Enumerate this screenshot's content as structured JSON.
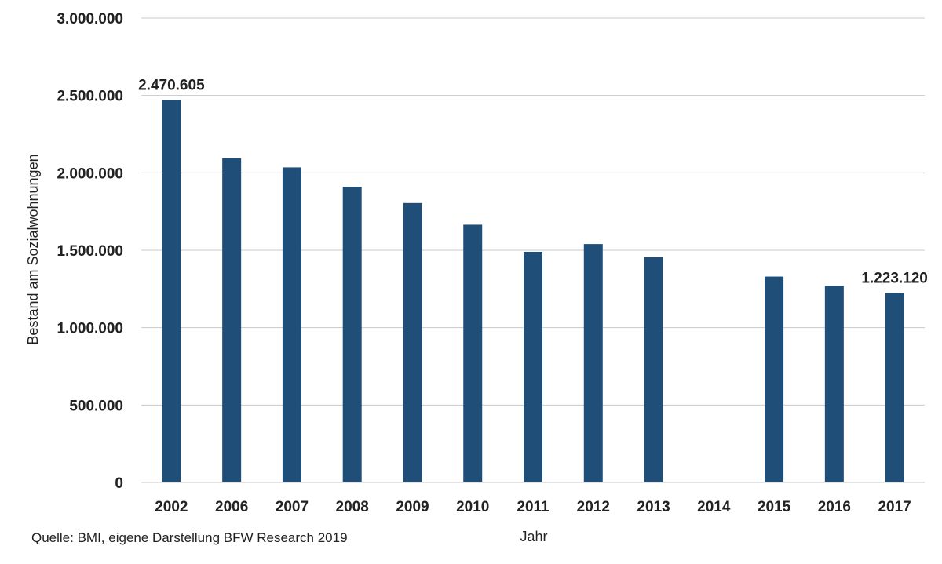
{
  "chart_data": {
    "type": "bar",
    "categories": [
      "2002",
      "2006",
      "2007",
      "2008",
      "2009",
      "2010",
      "2011",
      "2012",
      "2013",
      "2014",
      "2015",
      "2016",
      "2017"
    ],
    "values": [
      2470605,
      2095000,
      2035000,
      1910000,
      1805000,
      1665000,
      1490000,
      1540000,
      1455000,
      null,
      1330000,
      1270000,
      1223120
    ],
    "data_labels": [
      {
        "category": "2002",
        "text": "2.470.605"
      },
      {
        "category": "2017",
        "text": "1.223.120"
      }
    ],
    "y_ticks": [
      "0",
      "500.000",
      "1.000.000",
      "1.500.000",
      "2.000.000",
      "2.500.000",
      "3.000.000"
    ],
    "ylim": [
      0,
      3000000
    ],
    "xlabel": "Jahr",
    "ylabel": "Bestand am Sozialwohnungen",
    "grid": true,
    "bar_color": "#1F4E79",
    "grid_color": "#c8c8c8"
  },
  "source_note": "Quelle: BMI, eigene Darstellung BFW Research 2019"
}
